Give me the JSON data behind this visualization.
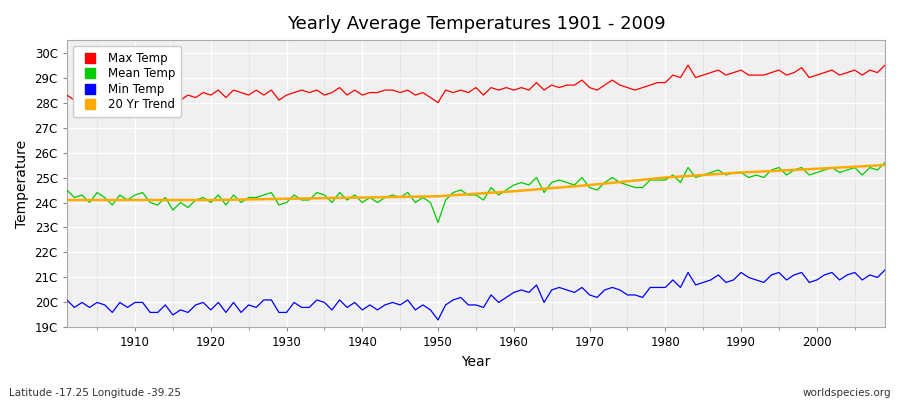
{
  "title": "Yearly Average Temperatures 1901 - 2009",
  "xlabel": "Year",
  "ylabel": "Temperature",
  "bottom_left": "Latitude -17.25 Longitude -39.25",
  "bottom_right": "worldspecies.org",
  "ylim": [
    19.0,
    30.5
  ],
  "yticks": [
    19,
    20,
    21,
    22,
    23,
    24,
    25,
    26,
    27,
    28,
    29,
    30
  ],
  "ytick_labels": [
    "19C",
    "20C",
    "21C",
    "22C",
    "23C",
    "24C",
    "25C",
    "26C",
    "27C",
    "28C",
    "29C",
    "30C"
  ],
  "years": [
    1901,
    1902,
    1903,
    1904,
    1905,
    1906,
    1907,
    1908,
    1909,
    1910,
    1911,
    1912,
    1913,
    1914,
    1915,
    1916,
    1917,
    1918,
    1919,
    1920,
    1921,
    1922,
    1923,
    1924,
    1925,
    1926,
    1927,
    1928,
    1929,
    1930,
    1931,
    1932,
    1933,
    1934,
    1935,
    1936,
    1937,
    1938,
    1939,
    1940,
    1941,
    1942,
    1943,
    1944,
    1945,
    1946,
    1947,
    1948,
    1949,
    1950,
    1951,
    1952,
    1953,
    1954,
    1955,
    1956,
    1957,
    1958,
    1959,
    1960,
    1961,
    1962,
    1963,
    1964,
    1965,
    1966,
    1967,
    1968,
    1969,
    1970,
    1971,
    1972,
    1973,
    1974,
    1975,
    1976,
    1977,
    1978,
    1979,
    1980,
    1981,
    1982,
    1983,
    1984,
    1985,
    1986,
    1987,
    1988,
    1989,
    1990,
    1991,
    1992,
    1993,
    1994,
    1995,
    1996,
    1997,
    1998,
    1999,
    2000,
    2001,
    2002,
    2003,
    2004,
    2005,
    2006,
    2007,
    2008,
    2009
  ],
  "max_temp": [
    28.3,
    28.1,
    28.4,
    28.2,
    28.5,
    28.3,
    28.1,
    28.4,
    28.3,
    28.2,
    28.5,
    28.3,
    28.2,
    28.4,
    27.8,
    28.1,
    28.3,
    28.2,
    28.4,
    28.3,
    28.5,
    28.2,
    28.5,
    28.4,
    28.3,
    28.5,
    28.3,
    28.5,
    28.1,
    28.3,
    28.4,
    28.5,
    28.4,
    28.5,
    28.3,
    28.4,
    28.6,
    28.3,
    28.5,
    28.3,
    28.4,
    28.4,
    28.5,
    28.5,
    28.4,
    28.5,
    28.3,
    28.4,
    28.2,
    28.0,
    28.5,
    28.4,
    28.5,
    28.4,
    28.6,
    28.3,
    28.6,
    28.5,
    28.6,
    28.5,
    28.6,
    28.5,
    28.8,
    28.5,
    28.7,
    28.6,
    28.7,
    28.7,
    28.9,
    28.6,
    28.5,
    28.7,
    28.9,
    28.7,
    28.6,
    28.5,
    28.6,
    28.7,
    28.8,
    28.8,
    29.1,
    29.0,
    29.5,
    29.0,
    29.1,
    29.2,
    29.3,
    29.1,
    29.2,
    29.3,
    29.1,
    29.1,
    29.1,
    29.2,
    29.3,
    29.1,
    29.2,
    29.4,
    29.0,
    29.1,
    29.2,
    29.3,
    29.1,
    29.2,
    29.3,
    29.1,
    29.3,
    29.2,
    29.5
  ],
  "mean_temp": [
    24.5,
    24.2,
    24.3,
    24.0,
    24.4,
    24.2,
    23.9,
    24.3,
    24.1,
    24.3,
    24.4,
    24.0,
    23.9,
    24.2,
    23.7,
    24.0,
    23.8,
    24.1,
    24.2,
    24.0,
    24.3,
    23.9,
    24.3,
    24.0,
    24.2,
    24.2,
    24.3,
    24.4,
    23.9,
    24.0,
    24.3,
    24.1,
    24.1,
    24.4,
    24.3,
    24.0,
    24.4,
    24.1,
    24.3,
    24.0,
    24.2,
    24.0,
    24.2,
    24.3,
    24.2,
    24.4,
    24.0,
    24.2,
    24.0,
    23.2,
    24.1,
    24.4,
    24.5,
    24.3,
    24.3,
    24.1,
    24.6,
    24.3,
    24.5,
    24.7,
    24.8,
    24.7,
    25.0,
    24.4,
    24.8,
    24.9,
    24.8,
    24.7,
    25.0,
    24.6,
    24.5,
    24.8,
    25.0,
    24.8,
    24.7,
    24.6,
    24.6,
    24.9,
    24.9,
    24.9,
    25.1,
    24.8,
    25.4,
    25.0,
    25.1,
    25.2,
    25.3,
    25.1,
    25.2,
    25.2,
    25.0,
    25.1,
    25.0,
    25.3,
    25.4,
    25.1,
    25.3,
    25.4,
    25.1,
    25.2,
    25.3,
    25.4,
    25.2,
    25.3,
    25.4,
    25.1,
    25.4,
    25.3,
    25.6
  ],
  "min_temp": [
    20.1,
    19.8,
    20.0,
    19.8,
    20.0,
    19.9,
    19.6,
    20.0,
    19.8,
    20.0,
    20.0,
    19.6,
    19.6,
    19.9,
    19.5,
    19.7,
    19.6,
    19.9,
    20.0,
    19.7,
    20.0,
    19.6,
    20.0,
    19.6,
    19.9,
    19.8,
    20.1,
    20.1,
    19.6,
    19.6,
    20.0,
    19.8,
    19.8,
    20.1,
    20.0,
    19.7,
    20.1,
    19.8,
    20.0,
    19.7,
    19.9,
    19.7,
    19.9,
    20.0,
    19.9,
    20.1,
    19.7,
    19.9,
    19.7,
    19.3,
    19.9,
    20.1,
    20.2,
    19.9,
    19.9,
    19.8,
    20.3,
    20.0,
    20.2,
    20.4,
    20.5,
    20.4,
    20.7,
    20.0,
    20.5,
    20.6,
    20.5,
    20.4,
    20.6,
    20.3,
    20.2,
    20.5,
    20.6,
    20.5,
    20.3,
    20.3,
    20.2,
    20.6,
    20.6,
    20.6,
    20.9,
    20.6,
    21.2,
    20.7,
    20.8,
    20.9,
    21.1,
    20.8,
    20.9,
    21.2,
    21.0,
    20.9,
    20.8,
    21.1,
    21.2,
    20.9,
    21.1,
    21.2,
    20.8,
    20.9,
    21.1,
    21.2,
    20.9,
    21.1,
    21.2,
    20.9,
    21.1,
    21.0,
    21.3
  ],
  "trend_x": [
    1901,
    1910,
    1920,
    1930,
    1940,
    1950,
    1960,
    1970,
    1980,
    1990,
    2000,
    2009
  ],
  "trend_y": [
    24.1,
    24.1,
    24.1,
    24.15,
    24.2,
    24.25,
    24.45,
    24.7,
    25.0,
    25.2,
    25.35,
    25.5
  ],
  "max_color": "#ff0000",
  "mean_color": "#00cc00",
  "min_color": "#0000ff",
  "trend_color": "#ffaa00",
  "bg_color": "#ffffff",
  "plot_bg_color": "#f0f0f0",
  "grid_major_color": "#ffffff",
  "grid_minor_color": "#e0e0e0",
  "legend_labels": [
    "Max Temp",
    "Mean Temp",
    "Min Temp",
    "20 Yr Trend"
  ]
}
